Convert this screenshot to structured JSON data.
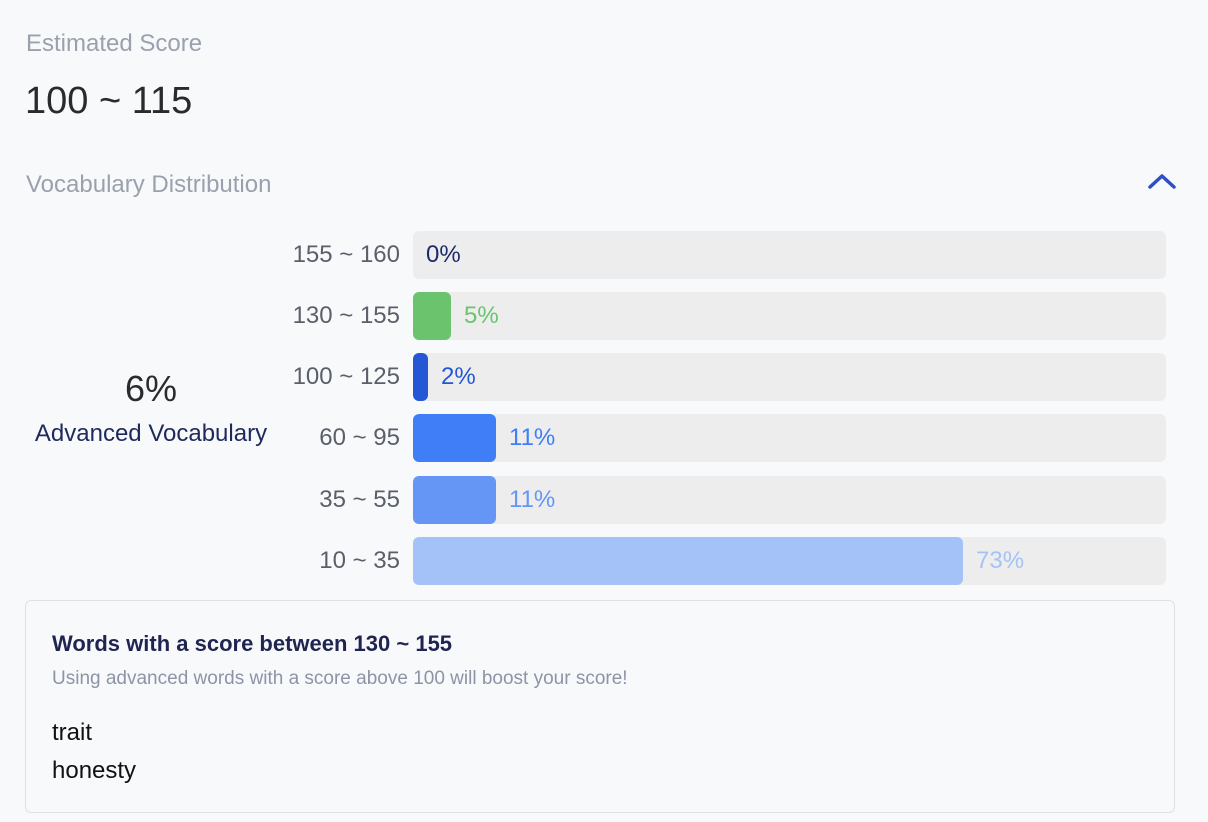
{
  "estimated_score": {
    "label": "Estimated Score",
    "value": "100 ~ 115"
  },
  "distribution": {
    "label": "Vocabulary Distribution",
    "toggle_icon": "chevron-up-icon",
    "advanced": {
      "percent": "6%",
      "label": "Advanced Vocabulary"
    },
    "rows": [
      {
        "range": "155 ~ 160",
        "percent": "0%",
        "value": 0,
        "color": "#1f2a6b",
        "fill_color": "#1f2a6b"
      },
      {
        "range": "130 ~ 155",
        "percent": "5%",
        "value": 5,
        "color": "#6bc46d",
        "fill_color": "#6bc46d"
      },
      {
        "range": "100 ~ 125",
        "percent": "2%",
        "value": 2,
        "color": "#2457d6",
        "fill_color": "#2457d6"
      },
      {
        "range": "60 ~ 95",
        "percent": "11%",
        "value": 11,
        "color": "#3f7ef7",
        "fill_color": "#3f7ef7"
      },
      {
        "range": "35 ~ 55",
        "percent": "11%",
        "value": 11,
        "color": "#6595f5",
        "fill_color": "#6595f5"
      },
      {
        "range": "10 ~ 35",
        "percent": "73%",
        "value": 73,
        "color": "#a5c2f8",
        "fill_color": "#a5c2f8"
      }
    ]
  },
  "words_card": {
    "title": "Words with a score between 130 ~ 155",
    "subtitle": "Using advanced words with a score above 100 will boost your score!",
    "words": [
      "trait",
      "honesty"
    ]
  }
}
